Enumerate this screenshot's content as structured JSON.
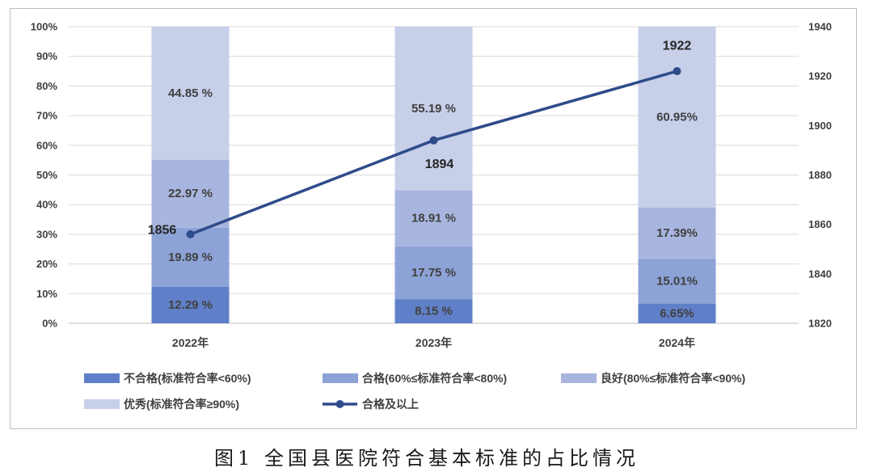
{
  "caption": "图1 全国县医院符合基本标准的占比情况",
  "chart_data": {
    "type": "bar",
    "stacked": true,
    "categories": [
      "2022年",
      "2023年",
      "2024年"
    ],
    "series": [
      {
        "name": "不合格(标准符合率<60%)",
        "type": "bar",
        "axis": "left",
        "values": [
          12.29,
          8.15,
          6.65
        ],
        "labels": [
          "12.29 %",
          "8.15 %",
          "6.65%"
        ],
        "color": "#5f80c8"
      },
      {
        "name": "合格(60%≤标准符合率<80%)",
        "type": "bar",
        "axis": "left",
        "values": [
          19.89,
          17.75,
          15.01
        ],
        "labels": [
          "19.89 %",
          "17.75 %",
          "15.01%"
        ],
        "color": "#8da2d6"
      },
      {
        "name": "良好(80%≤标准符合率<90%)",
        "type": "bar",
        "axis": "left",
        "values": [
          22.97,
          18.91,
          17.39
        ],
        "labels": [
          "22.97 %",
          "18.91 %",
          "17.39%"
        ],
        "color": "#a8b5de"
      },
      {
        "name": "优秀(标准符合率≥90%)",
        "type": "bar",
        "axis": "left",
        "values": [
          44.85,
          55.19,
          60.95
        ],
        "labels": [
          "44.85 %",
          "55.19 %",
          "60.95%"
        ],
        "color": "#c7cfe9"
      },
      {
        "name": "合格及以上",
        "type": "line",
        "axis": "right",
        "values": [
          1856,
          1894,
          1922
        ],
        "labels": [
          "1856",
          "1894",
          "1922"
        ],
        "color": "#2e4b8a"
      }
    ],
    "y_left": {
      "range": [
        0,
        100
      ],
      "ticks": [
        "0%",
        "10%",
        "20%",
        "30%",
        "40%",
        "50%",
        "60%",
        "70%",
        "80%",
        "90%",
        "100%"
      ]
    },
    "y_right": {
      "range": [
        1820,
        1940
      ],
      "ticks": [
        "1820",
        "1840",
        "1860",
        "1880",
        "1900",
        "1920",
        "1940"
      ]
    },
    "grid": true,
    "legend_position": "bottom"
  }
}
